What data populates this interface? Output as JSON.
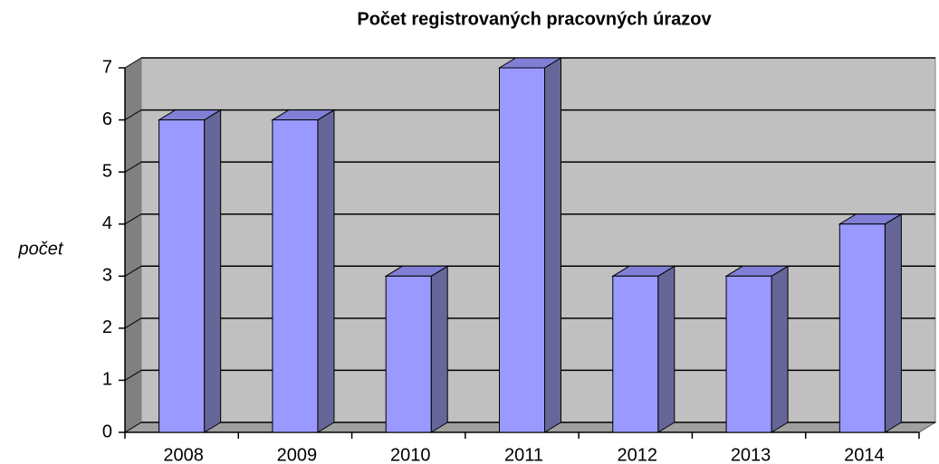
{
  "chart_data": {
    "type": "bar",
    "title": "Počet registrovaných pracovných úrazov",
    "ylabel": "počet",
    "categories": [
      "2008",
      "2009",
      "2010",
      "2011",
      "2012",
      "2013",
      "2014"
    ],
    "values": [
      6,
      6,
      3,
      7,
      3,
      3,
      4
    ],
    "color": "#9999ff",
    "ylim": [
      0,
      7
    ],
    "yticks": [
      0,
      1,
      2,
      3,
      4,
      5,
      6,
      7
    ],
    "grid": true
  }
}
